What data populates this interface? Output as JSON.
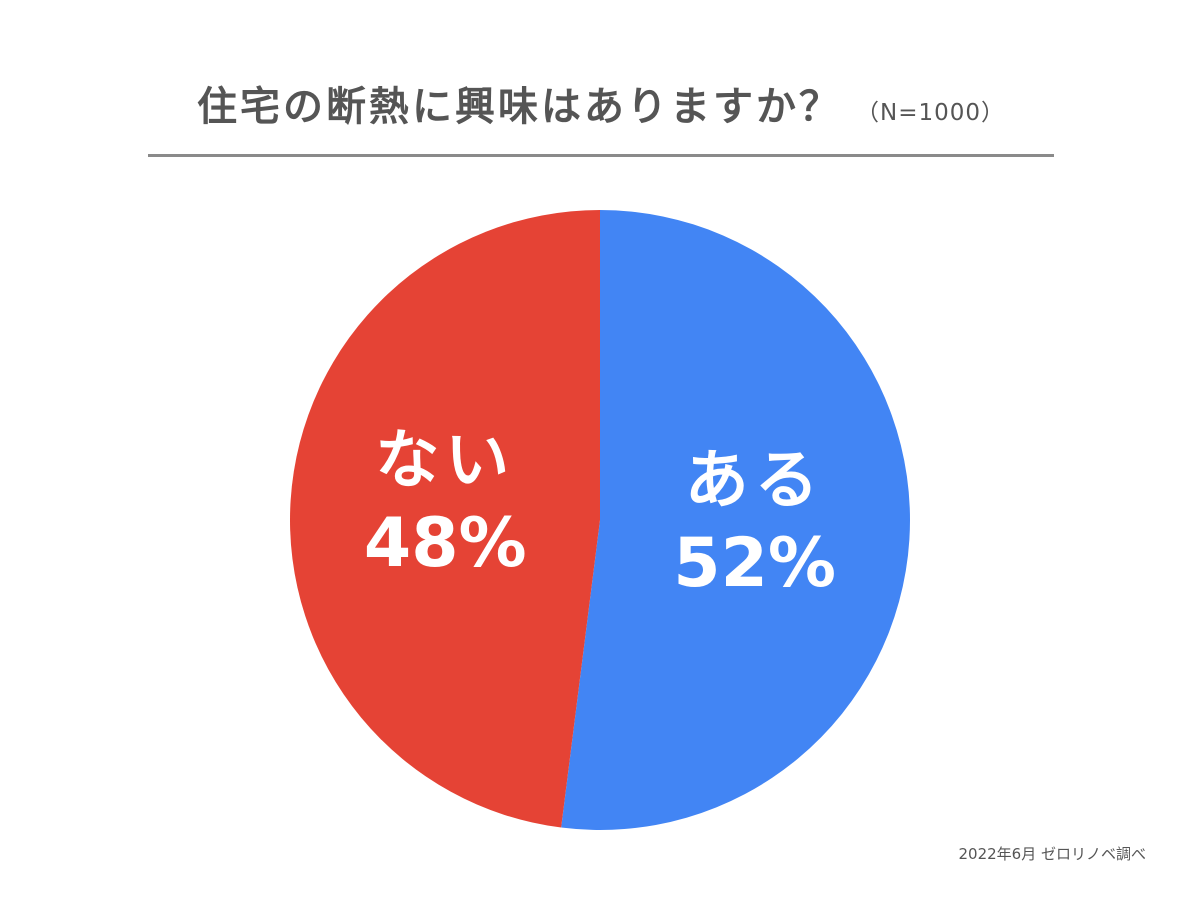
{
  "title": "住宅の断熱に興味はありますか？",
  "subtitle": "（N=1000）",
  "source_note": "2022年6月  ゼロリノベ調べ",
  "chart_data": {
    "type": "pie",
    "title": "住宅の断熱に興味はありますか？",
    "subtitle": "（N=1000）",
    "start_angle_deg": 0,
    "direction": "clockwise",
    "slices": [
      {
        "label": "ある",
        "value": 52,
        "value_label": "52%",
        "color": "#4285F4"
      },
      {
        "label": "ない",
        "value": 48,
        "value_label": "48%",
        "color": "#E54335"
      }
    ]
  }
}
